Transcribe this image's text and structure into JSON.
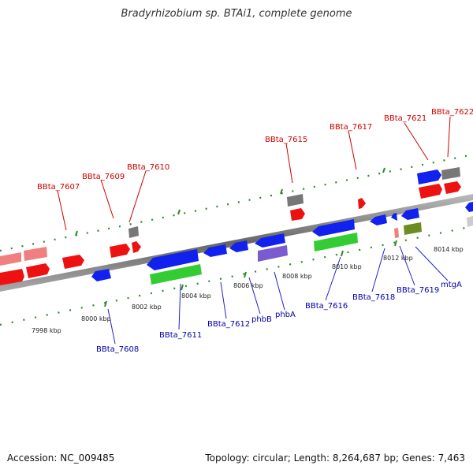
{
  "title": "Bradyrhizobium sp. BTAi1, complete genome",
  "footer": {
    "accession": "Accession: NC_009485",
    "stats": "Topology: circular; Length: 8,264,687 bp; Genes: 7,463"
  },
  "colors": {
    "label_top": "#cc0000",
    "label_bottom": "#0000aa",
    "backbone": "#888888",
    "tick_marks": "#2a8a2a"
  },
  "ticks": [
    "7998 kbp",
    "8000 kbp",
    "8002 kbp",
    "8004 kbp",
    "8006 kbp",
    "8008 kbp",
    "8010 kbp",
    "8012 kbp",
    "8014 kbp"
  ],
  "labels_top": [
    "BBta_7607",
    "BBta_7609",
    "BBta_7610",
    "BBta_7615",
    "BBta_7617",
    "BBta_7621",
    "BBta_7622"
  ],
  "labels_bottom": [
    "BBta_7608",
    "BBta_7611",
    "BBta_7612",
    "phbB",
    "phbA",
    "BBta_7616",
    "BBta_7618",
    "BBta_7619",
    "mtgA"
  ]
}
